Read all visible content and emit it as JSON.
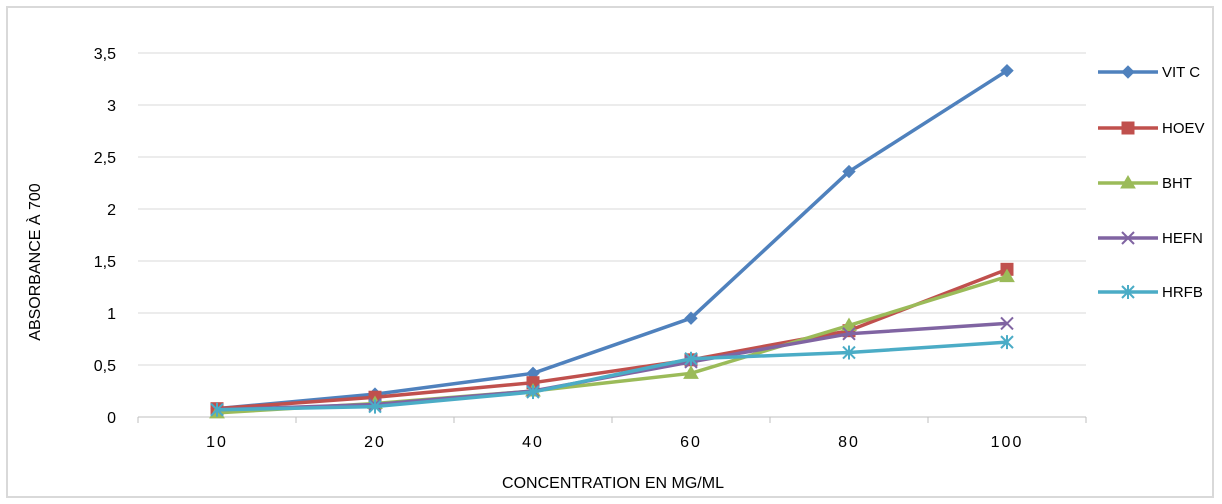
{
  "chart_data": {
    "type": "line",
    "categories": [
      "10",
      "20",
      "40",
      "60",
      "80",
      "100"
    ],
    "xlabel": "CONCENTRATION EN MG/ML",
    "ylabel": "ABSORBANCE À 700",
    "ylim": [
      0,
      3.5
    ],
    "yticks": [
      "0",
      "0,5",
      "1",
      "1,5",
      "2",
      "2,5",
      "3",
      "3,5"
    ],
    "grid": "horizontal",
    "legend_position": "right",
    "series": [
      {
        "name": "VIT C",
        "color": "#4f81bd",
        "marker": "diamond",
        "values": [
          0.08,
          0.22,
          0.42,
          0.95,
          2.36,
          3.33
        ]
      },
      {
        "name": "HOEV",
        "color": "#c0504d",
        "marker": "square",
        "values": [
          0.08,
          0.19,
          0.33,
          0.55,
          0.83,
          1.42
        ]
      },
      {
        "name": "BHT",
        "color": "#9bbb59",
        "marker": "triangle",
        "values": [
          0.04,
          0.13,
          0.25,
          0.42,
          0.88,
          1.35
        ]
      },
      {
        "name": "HEFN",
        "color": "#8064a2",
        "marker": "x",
        "values": [
          0.07,
          0.12,
          0.25,
          0.53,
          0.8,
          0.9
        ]
      },
      {
        "name": "HRFB",
        "color": "#4bacc6",
        "marker": "star",
        "values": [
          0.07,
          0.1,
          0.24,
          0.56,
          0.62,
          0.72
        ]
      }
    ]
  }
}
